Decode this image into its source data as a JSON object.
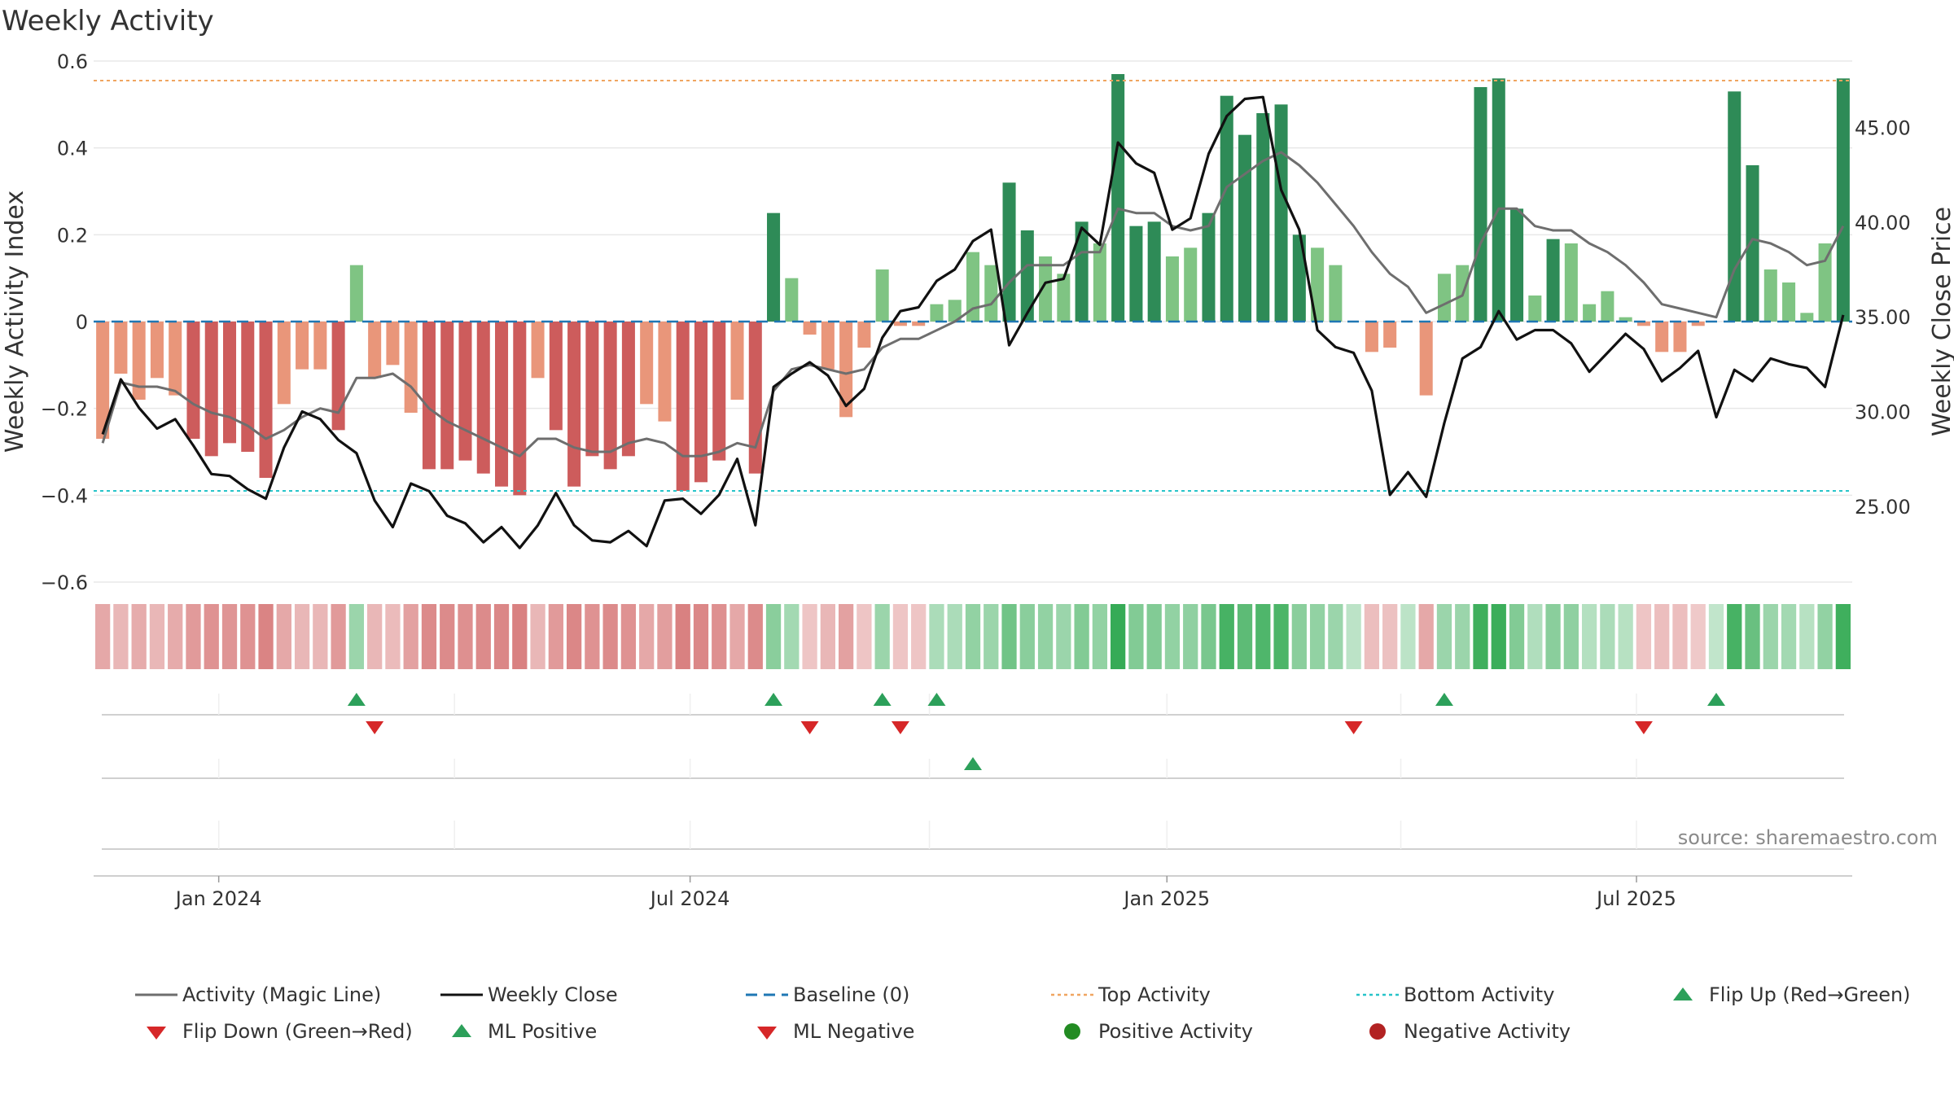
{
  "title": "Weekly Activity",
  "source": "source: sharemaestro.com",
  "colors": {
    "magic_line": "#6e6e6e",
    "close": "#111111",
    "baseline": "#1f77b4",
    "top": "#f0a560",
    "bottom": "#27c4c9",
    "pos_strong": "#2e8b57",
    "pos_weak": "#7fc483",
    "neg_strong": "#cd5c5c",
    "neg_weak": "#e9967a",
    "flip_up": "#2ca05a",
    "flip_down": "#d62728",
    "positive_activity": "#228b22",
    "negative_activity": "#b22222"
  },
  "chart_data": {
    "type": "bar",
    "title": "Weekly Activity",
    "ylabel": "Weekly Activity Index",
    "y2label": "Weekly Close Price",
    "ylim": [
      -0.6,
      0.6
    ],
    "y2lim": [
      21.0,
      48.5
    ],
    "yticks": [
      "0.6",
      "0.4",
      "0.2",
      "0",
      "−0.2",
      "−0.4",
      "−0.6"
    ],
    "ytick_values": [
      0.6,
      0.4,
      0.2,
      0,
      -0.2,
      -0.4,
      -0.6
    ],
    "y2ticks": [
      "45.00",
      "40.00",
      "35.00",
      "30.00",
      "25.00"
    ],
    "y2tick_values": [
      45,
      40,
      35,
      30,
      25
    ],
    "x_start": "2023-11-27",
    "week_count": 97,
    "xticks": [
      {
        "label": "Jan 2024",
        "week": 6.4
      },
      {
        "label": "Jul 2024",
        "week": 32.4
      },
      {
        "label": "Jan 2025",
        "week": 58.7
      },
      {
        "label": "Jul 2025",
        "week": 84.6
      }
    ],
    "top_activity": 0.555,
    "bottom_activity": -0.39,
    "baseline": 0,
    "activity": [
      -0.27,
      -0.12,
      -0.18,
      -0.13,
      -0.17,
      -0.27,
      -0.31,
      -0.28,
      -0.3,
      -0.36,
      -0.19,
      -0.11,
      -0.11,
      -0.25,
      0.13,
      -0.13,
      -0.1,
      -0.21,
      -0.34,
      -0.34,
      -0.32,
      -0.35,
      -0.38,
      -0.4,
      -0.13,
      -0.25,
      -0.38,
      -0.31,
      -0.34,
      -0.31,
      -0.19,
      -0.23,
      -0.39,
      -0.37,
      -0.32,
      -0.18,
      -0.35,
      0.25,
      0.1,
      -0.03,
      -0.11,
      -0.22,
      -0.06,
      0.12,
      -0.01,
      -0.01,
      0.04,
      0.05,
      0.16,
      0.13,
      0.32,
      0.21,
      0.15,
      0.11,
      0.23,
      0.18,
      0.57,
      0.22,
      0.23,
      0.15,
      0.17,
      0.25,
      0.52,
      0.43,
      0.48,
      0.5,
      0.2,
      0.17,
      0.13,
      0.0,
      -0.07,
      -0.06,
      0.0,
      -0.17,
      0.11,
      0.13,
      0.54,
      0.56,
      0.26,
      0.06,
      0.19,
      0.18,
      0.04,
      0.07,
      0.01,
      -0.01,
      -0.07,
      -0.07,
      -0.01,
      0.0,
      0.53,
      0.36,
      0.12,
      0.09,
      0.02,
      0.18,
      0.56
    ],
    "strength": [
      0.35,
      0.25,
      0.32,
      0.25,
      0.33,
      0.45,
      0.5,
      0.48,
      0.5,
      0.6,
      0.35,
      0.25,
      0.25,
      0.45,
      0.35,
      0.25,
      0.22,
      0.4,
      0.55,
      0.55,
      0.52,
      0.55,
      0.58,
      0.62,
      0.25,
      0.45,
      0.58,
      0.5,
      0.55,
      0.5,
      0.35,
      0.42,
      0.62,
      0.58,
      0.52,
      0.35,
      0.55,
      0.45,
      0.3,
      0.15,
      0.25,
      0.4,
      0.15,
      0.35,
      0.15,
      0.15,
      0.25,
      0.25,
      0.4,
      0.35,
      0.6,
      0.45,
      0.4,
      0.35,
      0.5,
      0.4,
      0.95,
      0.5,
      0.5,
      0.4,
      0.42,
      0.55,
      0.85,
      0.72,
      0.8,
      0.82,
      0.45,
      0.4,
      0.35,
      0.15,
      0.2,
      0.18,
      0.15,
      0.35,
      0.35,
      0.35,
      0.9,
      0.92,
      0.5,
      0.22,
      0.45,
      0.42,
      0.2,
      0.25,
      0.18,
      0.15,
      0.2,
      0.2,
      0.12,
      0.12,
      0.85,
      0.65,
      0.35,
      0.3,
      0.18,
      0.4,
      0.9
    ],
    "magic_line": [
      -0.28,
      -0.14,
      -0.15,
      -0.15,
      -0.16,
      -0.19,
      -0.21,
      -0.22,
      -0.24,
      -0.27,
      -0.25,
      -0.22,
      -0.2,
      -0.21,
      -0.13,
      -0.13,
      -0.12,
      -0.15,
      -0.2,
      -0.23,
      -0.25,
      -0.27,
      -0.29,
      -0.31,
      -0.27,
      -0.27,
      -0.29,
      -0.3,
      -0.3,
      -0.28,
      -0.27,
      -0.28,
      -0.31,
      -0.31,
      -0.3,
      -0.28,
      -0.29,
      -0.16,
      -0.11,
      -0.1,
      -0.11,
      -0.12,
      -0.11,
      -0.06,
      -0.04,
      -0.04,
      -0.02,
      -0.0,
      0.03,
      0.04,
      0.09,
      0.13,
      0.13,
      0.13,
      0.16,
      0.16,
      0.26,
      0.25,
      0.25,
      0.22,
      0.21,
      0.22,
      0.31,
      0.34,
      0.37,
      0.39,
      0.36,
      0.32,
      0.27,
      0.22,
      0.16,
      0.11,
      0.08,
      0.02,
      0.04,
      0.06,
      0.18,
      0.26,
      0.26,
      0.22,
      0.21,
      0.21,
      0.18,
      0.16,
      0.13,
      0.09,
      0.04,
      0.03,
      0.02,
      0.01,
      0.12,
      0.19,
      0.18,
      0.16,
      0.13,
      0.14,
      0.22
    ],
    "close": [
      28.8,
      31.7,
      30.2,
      29.1,
      29.6,
      28.2,
      26.7,
      26.6,
      25.9,
      25.4,
      28.1,
      30.0,
      29.6,
      28.5,
      27.8,
      25.3,
      23.9,
      26.2,
      25.8,
      24.5,
      24.1,
      23.1,
      23.9,
      22.8,
      24.0,
      25.7,
      24.0,
      23.2,
      23.1,
      23.7,
      22.9,
      25.3,
      25.4,
      24.6,
      25.6,
      27.5,
      24.0,
      31.3,
      32.0,
      32.6,
      31.9,
      30.3,
      31.2,
      33.9,
      35.3,
      35.5,
      36.9,
      37.5,
      39.0,
      39.6,
      33.5,
      35.2,
      36.8,
      37.0,
      39.7,
      38.8,
      44.2,
      43.1,
      42.6,
      39.6,
      40.2,
      43.6,
      45.6,
      46.5,
      46.6,
      41.7,
      39.6,
      34.3,
      33.4,
      33.1,
      31.1,
      25.6,
      26.8,
      25.5,
      29.4,
      32.8,
      33.4,
      35.3,
      33.8,
      34.3,
      34.3,
      33.6,
      32.1,
      33.1,
      34.1,
      33.3,
      31.6,
      32.3,
      33.2,
      29.7,
      32.2,
      31.6,
      32.8,
      32.5,
      32.3,
      31.3,
      35.1
    ],
    "flip_up_weeks": [
      14,
      37,
      43,
      46,
      74,
      89
    ],
    "flip_down_weeks": [
      15,
      39,
      44,
      69,
      85
    ],
    "ml_positive_weeks": [
      48
    ],
    "ml_negative_weeks": [],
    "positive_activity_weeks": [],
    "negative_activity_weeks": [],
    "legend": [
      "Activity (Magic Line)",
      "Weekly Close",
      "Baseline (0)",
      "Top Activity",
      "Bottom Activity",
      "Flip Up (Red→Green)",
      "Flip Down (Green→Red)",
      "ML Positive",
      "ML Negative",
      "Positive Activity",
      "Negative Activity"
    ]
  }
}
